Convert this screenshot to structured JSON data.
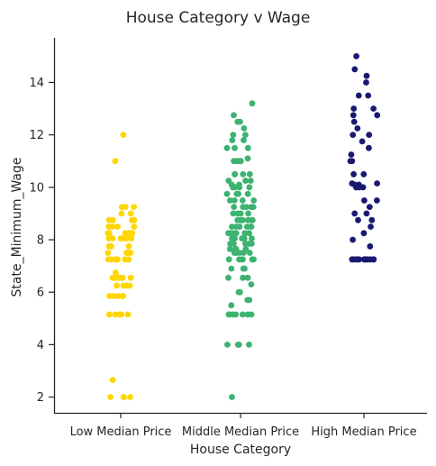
{
  "chart_data": {
    "type": "scatter",
    "subtype": "strip",
    "title": "House Category v Wage",
    "xlabel": "House Category",
    "ylabel": "State_Minimum_Wage",
    "categories": [
      "Low Median Price",
      "Middle Median Price",
      "High Median Price"
    ],
    "ylim": [
      1.4,
      15.7
    ],
    "yticks": [
      2,
      4,
      6,
      8,
      10,
      12,
      14
    ],
    "ytick_labels": [
      "2",
      "4",
      "6",
      "8",
      "10",
      "12",
      "14"
    ],
    "grid": false,
    "legend": "none",
    "colors": [
      "#FFD700",
      "#3CB371",
      "#191970"
    ],
    "series": [
      {
        "values": [
          12.0,
          11.0,
          9.25,
          9.25,
          9.25,
          9.0,
          9.0,
          8.75,
          8.75,
          8.75,
          8.75,
          8.5,
          8.5,
          8.5,
          8.5,
          8.25,
          8.25,
          8.25,
          8.25,
          8.25,
          8.05,
          8.05,
          8.05,
          8.05,
          8.05,
          8.05,
          7.75,
          7.75,
          7.75,
          7.5,
          7.5,
          7.5,
          7.5,
          7.5,
          7.5,
          7.5,
          7.25,
          7.25,
          7.25,
          7.25,
          7.25,
          7.25,
          7.25,
          6.75,
          6.55,
          6.55,
          6.55,
          6.55,
          6.55,
          6.55,
          6.55,
          6.25,
          6.25,
          6.25,
          6.25,
          5.85,
          5.85,
          5.85,
          5.85,
          5.85,
          5.85,
          5.15,
          5.15,
          5.15,
          5.15,
          5.15,
          5.15,
          2.65,
          2.0,
          2.0,
          2.0,
          2.0
        ]
      },
      {
        "values": [
          13.2,
          12.75,
          12.5,
          12.5,
          12.25,
          12.0,
          12.0,
          11.8,
          11.8,
          11.5,
          11.5,
          11.5,
          11.1,
          11.0,
          11.0,
          11.0,
          11.0,
          10.5,
          10.5,
          10.5,
          10.5,
          10.25,
          10.25,
          10.25,
          10.1,
          10.1,
          10.0,
          10.0,
          10.0,
          10.0,
          9.75,
          9.75,
          9.75,
          9.75,
          9.5,
          9.5,
          9.5,
          9.5,
          9.25,
          9.25,
          9.25,
          9.25,
          9.25,
          9.0,
          9.0,
          9.0,
          9.0,
          9.0,
          8.75,
          8.75,
          8.75,
          8.75,
          8.75,
          8.75,
          8.5,
          8.5,
          8.5,
          8.5,
          8.5,
          8.5,
          8.5,
          8.25,
          8.25,
          8.25,
          8.25,
          8.25,
          8.25,
          8.05,
          8.05,
          8.05,
          8.05,
          8.05,
          8.05,
          8.05,
          7.85,
          7.85,
          7.85,
          7.85,
          7.85,
          7.65,
          7.65,
          7.65,
          7.65,
          7.5,
          7.5,
          7.5,
          7.5,
          7.5,
          7.25,
          7.25,
          7.25,
          7.25,
          7.25,
          7.25,
          6.9,
          6.9,
          6.9,
          6.55,
          6.55,
          6.55,
          6.3,
          6.0,
          6.0,
          5.7,
          5.7,
          5.5,
          5.15,
          5.15,
          5.15,
          5.15,
          5.15,
          5.15,
          5.15,
          5.15,
          4.0,
          4.0,
          4.0,
          4.0,
          2.0
        ]
      },
      {
        "values": [
          15.0,
          14.5,
          14.25,
          14.0,
          13.5,
          13.5,
          13.0,
          13.0,
          12.75,
          12.75,
          12.5,
          12.25,
          12.0,
          12.0,
          11.75,
          11.5,
          11.25,
          11.0,
          11.0,
          10.5,
          10.5,
          10.15,
          10.15,
          10.1,
          10.1,
          10.0,
          10.0,
          10.0,
          9.5,
          9.5,
          9.25,
          9.0,
          9.0,
          8.75,
          8.75,
          8.5,
          8.25,
          8.0,
          7.75,
          7.25,
          7.25,
          7.25,
          7.25,
          7.25,
          7.25,
          7.25,
          7.25,
          7.25,
          7.25,
          7.25,
          7.25
        ]
      }
    ]
  }
}
